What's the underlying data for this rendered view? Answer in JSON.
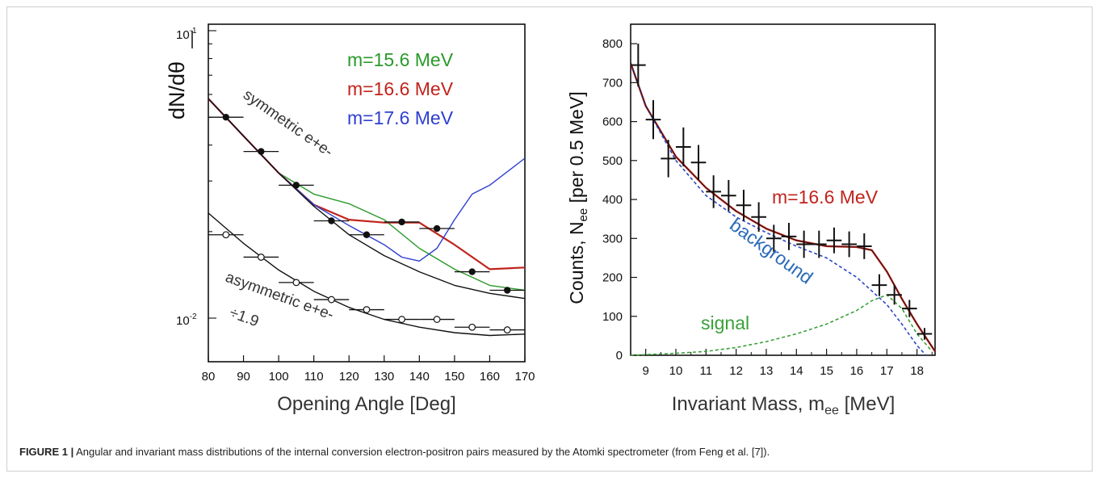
{
  "figure": {
    "caption_label": "FIGURE 1 |",
    "caption_text": "Angular and invariant mass distributions of the internal conversion electron-positron pairs measured by the Atomki spectrometer (from Feng et al. [7]).",
    "colors": {
      "green": "#2a9a2a",
      "red": "#c0241c",
      "blue": "#2f3fd0",
      "black": "#111111",
      "dash_blue": "#2a48c8",
      "dash_green": "#3aa03a"
    }
  },
  "chart_data": [
    {
      "type": "scatter",
      "xlabel": "Opening Angle [Deg]",
      "ylabel": "dN/dθ",
      "yscale": "log",
      "xlim": [
        80,
        170
      ],
      "ylim": [
        0.008,
        0.1
      ],
      "xticks": [
        "80",
        "90",
        "100",
        "110",
        "120",
        "130",
        "140",
        "150",
        "160",
        "170"
      ],
      "yticks": [
        "10^-1",
        "10^-2"
      ],
      "grid": false,
      "legend_position": "top-right",
      "legend": [
        "m=15.6 MeV",
        "m=16.6 MeV",
        "m=17.6 MeV"
      ],
      "annotations": [
        "symmetric e+e-",
        "asymmetric e+e-",
        "÷1.9"
      ],
      "series": [
        {
          "name": "symmetric e+e-",
          "marker": "filled",
          "x": [
            85,
            95,
            105,
            115,
            125,
            135,
            145,
            155,
            165
          ],
          "y": [
            0.05,
            0.038,
            0.029,
            0.0218,
            0.0195,
            0.0216,
            0.0205,
            0.0145,
            0.0125
          ],
          "xerr": 5
        },
        {
          "name": "asymmetric e+e-",
          "marker": "open",
          "x": [
            85,
            95,
            105,
            115,
            125,
            135,
            145,
            155,
            165
          ],
          "y": [
            0.0195,
            0.0163,
            0.0133,
            0.0116,
            0.0107,
            0.0099,
            0.0099,
            0.0093,
            0.0091
          ],
          "xerr": 5
        }
      ],
      "curves": [
        {
          "name": "m=15.6 MeV",
          "color": "green",
          "x": [
            80,
            90,
            100,
            110,
            120,
            130,
            140,
            150,
            160,
            170
          ],
          "y": [
            0.058,
            0.043,
            0.032,
            0.027,
            0.025,
            0.022,
            0.0175,
            0.0148,
            0.013,
            0.0125
          ]
        },
        {
          "name": "m=16.6 MeV",
          "color": "red",
          "x": [
            80,
            90,
            100,
            110,
            120,
            130,
            140,
            150,
            160,
            170
          ],
          "y": [
            0.058,
            0.043,
            0.032,
            0.0248,
            0.022,
            0.0215,
            0.0215,
            0.018,
            0.0148,
            0.015
          ]
        },
        {
          "name": "m=17.6 MeV",
          "color": "blue",
          "x": [
            80,
            90,
            100,
            110,
            120,
            130,
            135,
            140,
            145,
            150,
            155,
            160,
            170
          ],
          "y": [
            0.058,
            0.043,
            0.032,
            0.0248,
            0.021,
            0.018,
            0.0163,
            0.0158,
            0.0175,
            0.022,
            0.027,
            0.029,
            0.036
          ]
        },
        {
          "name": "symmetric baseline",
          "color": "black",
          "x": [
            80,
            90,
            100,
            110,
            120,
            130,
            140,
            150,
            160,
            170
          ],
          "y": [
            0.058,
            0.043,
            0.032,
            0.0245,
            0.0195,
            0.0165,
            0.0145,
            0.013,
            0.0122,
            0.0117
          ]
        },
        {
          "name": "asymmetric fit",
          "color": "black",
          "x": [
            80,
            90,
            100,
            110,
            120,
            130,
            140,
            150,
            160,
            170
          ],
          "y": [
            0.0232,
            0.0182,
            0.0147,
            0.0124,
            0.0109,
            0.0099,
            0.0093,
            0.0089,
            0.0087,
            0.0088
          ]
        }
      ]
    },
    {
      "type": "scatter",
      "xlabel": "Invariant Mass, mee [MeV]",
      "xlabel_parts": {
        "pre": "Invariant Mass, m",
        "sub": "ee",
        "post": " [MeV]"
      },
      "ylabel": "Counts, Nee [per 0.5 MeV]",
      "ylabel_parts": {
        "pre": "Counts, N",
        "sub": "ee",
        "post": " [per 0.5 MeV]"
      },
      "xlim": [
        8.5,
        18.6
      ],
      "ylim": [
        0,
        850
      ],
      "xticks": [
        "9",
        "10",
        "11",
        "12",
        "13",
        "14",
        "15",
        "16",
        "17",
        "18"
      ],
      "yticks": [
        "0",
        "100",
        "200",
        "300",
        "400",
        "500",
        "600",
        "700",
        "800"
      ],
      "grid": false,
      "annotations": [
        "m=16.6 MeV",
        "background",
        "signal"
      ],
      "series": [
        {
          "name": "data",
          "x": [
            8.75,
            9.25,
            9.75,
            10.25,
            10.75,
            11.25,
            11.75,
            12.25,
            12.75,
            13.25,
            13.75,
            14.25,
            14.75,
            15.25,
            15.75,
            16.25,
            16.75,
            17.25,
            17.75,
            18.25
          ],
          "y": [
            745,
            605,
            505,
            535,
            495,
            420,
            410,
            385,
            355,
            300,
            305,
            285,
            285,
            295,
            285,
            280,
            180,
            155,
            120,
            55
          ],
          "yerr": [
            55,
            50,
            48,
            50,
            45,
            42,
            40,
            40,
            38,
            35,
            35,
            35,
            35,
            33,
            33,
            33,
            28,
            25,
            22,
            15
          ]
        }
      ],
      "curves": [
        {
          "name": "m=16.6 MeV",
          "color": "red",
          "style": "solid",
          "x": [
            8.5,
            9,
            10,
            11,
            12,
            13,
            14,
            15,
            16,
            16.5,
            17,
            17.5,
            18,
            18.3,
            18.6
          ],
          "y": [
            750,
            640,
            510,
            430,
            370,
            325,
            295,
            280,
            278,
            270,
            215,
            145,
            80,
            45,
            10
          ]
        },
        {
          "name": "background",
          "color": "dash_blue",
          "style": "dashed",
          "x": [
            8.5,
            9,
            10,
            11,
            12,
            13,
            14,
            15,
            16,
            17,
            17.5,
            18,
            18.3
          ],
          "y": [
            750,
            640,
            500,
            410,
            355,
            315,
            280,
            250,
            200,
            130,
            80,
            25,
            0
          ]
        },
        {
          "name": "signal",
          "color": "dash_green",
          "style": "dashed",
          "x": [
            8.5,
            10,
            11,
            12,
            13,
            14,
            15,
            16,
            16.5,
            17,
            17.5,
            18,
            18.5
          ],
          "y": [
            0,
            5,
            10,
            20,
            35,
            55,
            80,
            115,
            140,
            155,
            120,
            55,
            10
          ]
        }
      ]
    }
  ]
}
